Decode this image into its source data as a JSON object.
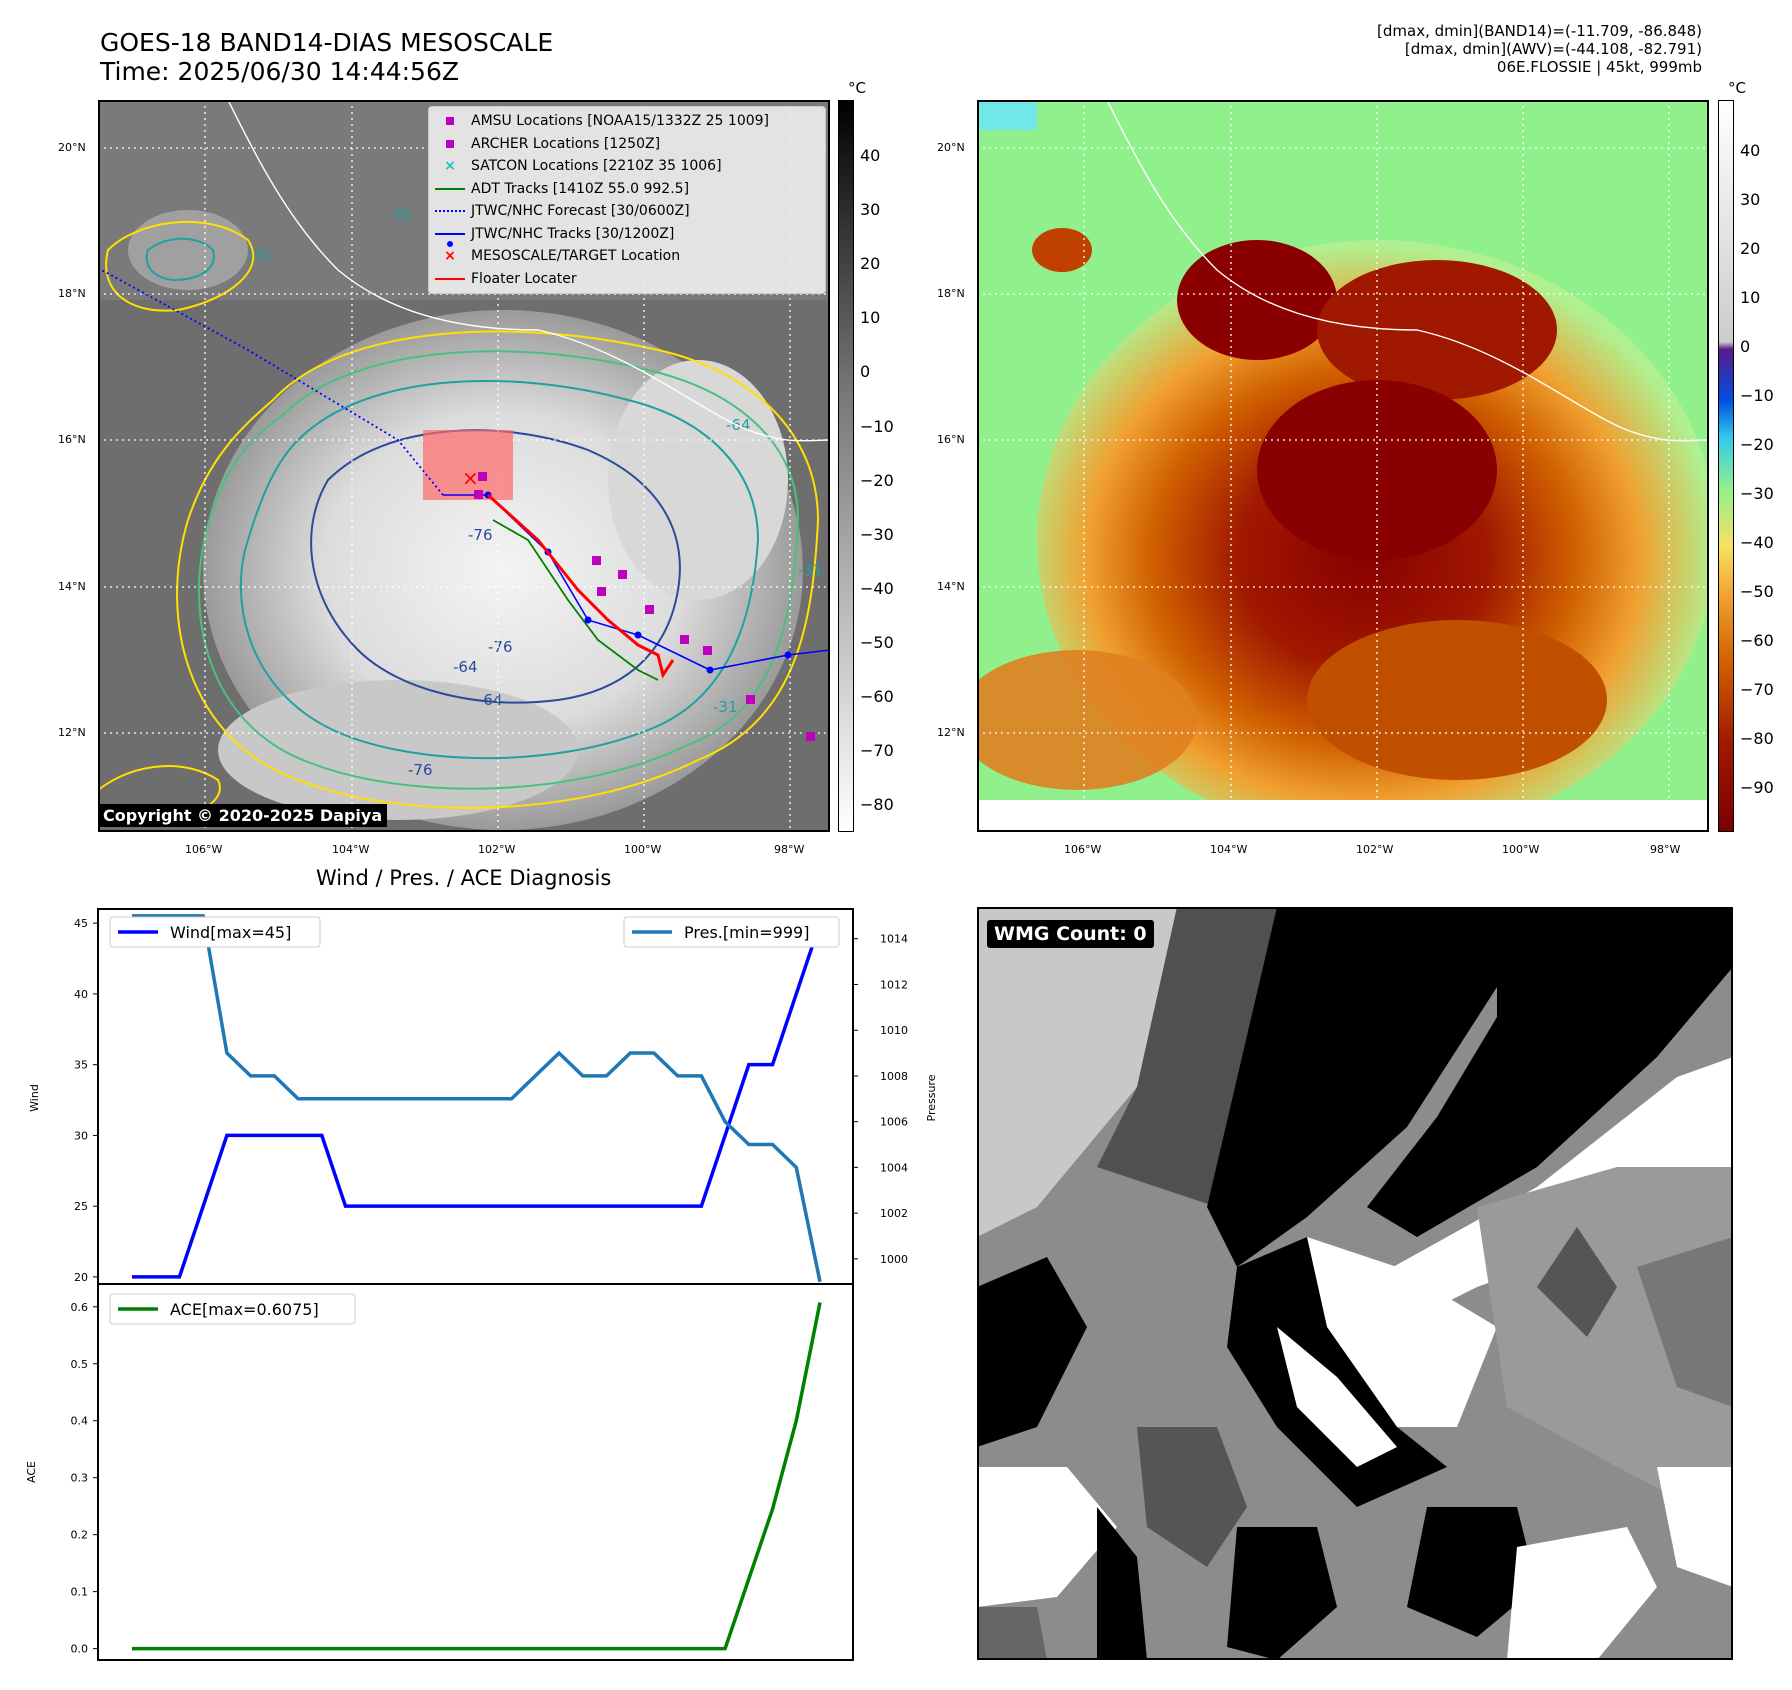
{
  "header": {
    "title_line1": "GOES-18 BAND14-DIAS MESOSCALE",
    "title_line2": "Time: 2025/06/30 14:44:56Z",
    "right_line1": "[dmax, dmin](BAND14)=(-11.709, -86.848)",
    "right_line2": "[dmax, dmin](AWV)=(-44.108, -82.791)",
    "right_line3": "06E.FLOSSIE | 45kt, 999mb"
  },
  "map": {
    "lat_labels": [
      "20°N",
      "18°N",
      "16°N",
      "14°N",
      "12°N"
    ],
    "lon_labels": [
      "106°W",
      "104°W",
      "102°W",
      "100°W",
      "98°W"
    ],
    "copyright": "Copyright © 2020-2025 Dapiya",
    "contour_labels": [
      "-31",
      "-64",
      "-76",
      "-76",
      "-64",
      "-76",
      "-64",
      "-31",
      "-31",
      "-31"
    ],
    "legend": [
      {
        "label": "AMSU Locations [NOAA15/1332Z 25 1009]",
        "icon": "magenta-square-marker",
        "color": "#c000c0"
      },
      {
        "label": "ARCHER Locations [1250Z]",
        "icon": "magenta-square-marker",
        "color": "#c000c0"
      },
      {
        "label": "SATCON Locations [2210Z 35 1006]",
        "icon": "cyan-x-marker",
        "color": "#20c0c0"
      },
      {
        "label": "ADT Tracks [1410Z 55.0 992.5]",
        "icon": "green-line",
        "color": "#008000"
      },
      {
        "label": "JTWC/NHC Forecast [30/0600Z]",
        "icon": "blue-dotted-line",
        "color": "#0000ff"
      },
      {
        "label": "JTWC/NHC Tracks [30/1200Z]",
        "icon": "blue-line-dot",
        "color": "#0000ff"
      },
      {
        "label": "MESOSCALE/TARGET Location",
        "icon": "red-x-marker",
        "color": "#ff0000"
      },
      {
        "label": "Floater Locater",
        "icon": "red-line",
        "color": "#ff0000"
      }
    ]
  },
  "colorbar_gray": {
    "unit": "°C",
    "ticks": [
      "40",
      "30",
      "20",
      "10",
      "0",
      "−10",
      "−20",
      "−30",
      "−40",
      "−50",
      "−60",
      "−70",
      "−80"
    ]
  },
  "colorbar_color": {
    "unit": "°C",
    "ticks": [
      "40",
      "30",
      "20",
      "10",
      "0",
      "−10",
      "−20",
      "−30",
      "−40",
      "−50",
      "−60",
      "−70",
      "−80",
      "−90"
    ]
  },
  "diagnosis_title": "Wind / Pres. / ACE Diagnosis",
  "wmg_label": "WMG Count: 0",
  "chart_data": [
    {
      "type": "line",
      "title": "Wind / Pres. / ACE Diagnosis",
      "ylabel": "Wind",
      "ylabel_right": "Pressure",
      "ylim": [
        19.5,
        46
      ],
      "ylim_right": [
        998.9,
        1015.3
      ],
      "y_ticks": [
        20,
        25,
        30,
        35,
        40,
        45
      ],
      "y_ticks_right": [
        1000,
        1002,
        1004,
        1006,
        1008,
        1010,
        1012,
        1014
      ],
      "x": [
        0,
        1,
        2,
        3,
        4,
        5,
        6,
        7,
        8,
        9,
        10,
        11,
        12,
        13,
        14,
        15,
        16,
        17,
        18,
        19,
        20,
        21,
        22,
        23,
        24,
        25,
        26,
        27,
        28,
        29
      ],
      "series": [
        {
          "name": "Wind[max=45]",
          "color": "#0000ff",
          "axis": "left",
          "values": [
            20,
            20,
            20,
            25,
            30,
            30,
            30,
            30,
            30,
            25,
            25,
            25,
            25,
            25,
            25,
            25,
            25,
            25,
            25,
            25,
            25,
            25,
            25,
            25,
            25,
            30,
            35,
            35,
            40,
            45
          ]
        },
        {
          "name": "Pres.[min=999]",
          "color": "#1f77b4",
          "axis": "right",
          "values": [
            1015,
            1015,
            1015,
            1015,
            1009,
            1008,
            1008,
            1007,
            1007,
            1007,
            1007,
            1007,
            1007,
            1007,
            1007,
            1007,
            1007,
            1008,
            1009,
            1008,
            1008,
            1009,
            1009,
            1008,
            1008,
            1006,
            1005,
            1005,
            1004,
            999
          ]
        }
      ]
    },
    {
      "type": "line",
      "ylabel": "ACE",
      "ylim": [
        -0.02,
        0.64
      ],
      "y_ticks": [
        0.0,
        0.1,
        0.2,
        0.3,
        0.4,
        0.5,
        0.6
      ],
      "x": [
        0,
        1,
        2,
        3,
        4,
        5,
        6,
        7,
        8,
        9,
        10,
        11,
        12,
        13,
        14,
        15,
        16,
        17,
        18,
        19,
        20,
        21,
        22,
        23,
        24,
        25,
        26,
        27,
        28,
        29
      ],
      "series": [
        {
          "name": "ACE[max=0.6075]",
          "color": "#008000",
          "values": [
            0,
            0,
            0,
            0,
            0,
            0,
            0,
            0,
            0,
            0,
            0,
            0,
            0,
            0,
            0,
            0,
            0,
            0,
            0,
            0,
            0,
            0,
            0,
            0,
            0,
            0,
            0.1225,
            0.245,
            0.4,
            0.6075
          ]
        }
      ]
    }
  ]
}
